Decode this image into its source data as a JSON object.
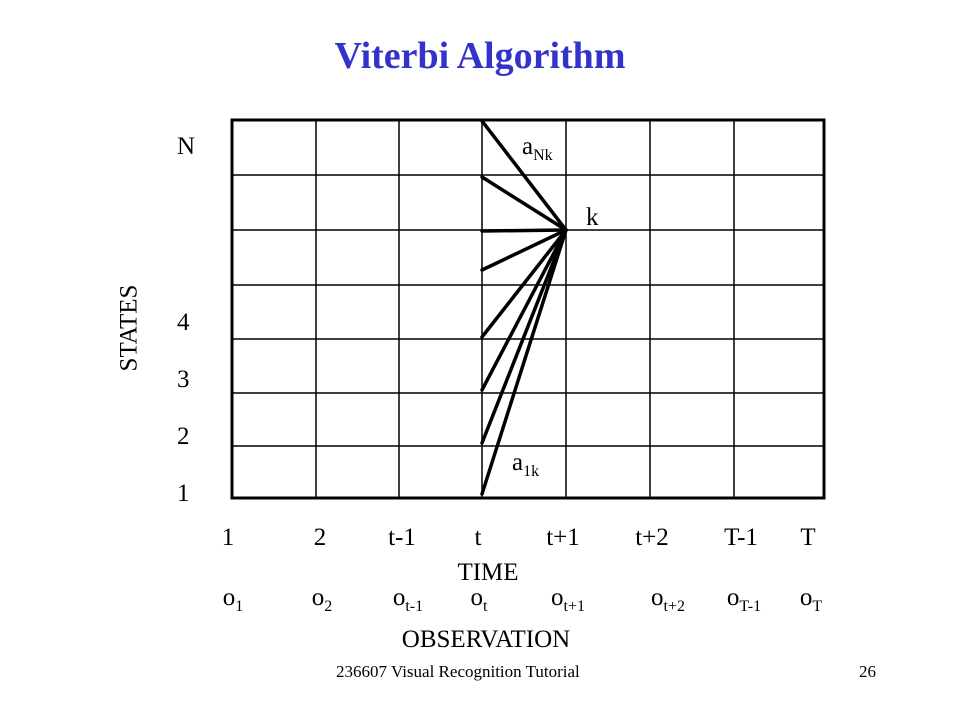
{
  "title": "Viterbi Algorithm",
  "states_label": "STATES",
  "state_ticks": [
    "N",
    "4",
    "3",
    "2",
    "1"
  ],
  "time_label": "TIME",
  "time_ticks": [
    "1",
    "2",
    "t-1",
    "t",
    "t+1",
    "t+2",
    "T-1",
    "T"
  ],
  "observation_label": "OBSERVATION",
  "observations": [
    {
      "base": "o",
      "sub": "1"
    },
    {
      "base": "o",
      "sub": "2"
    },
    {
      "base": "o",
      "sub": "t-1"
    },
    {
      "base": "o",
      "sub": "t"
    },
    {
      "base": "o",
      "sub": "t+1"
    },
    {
      "base": "o",
      "sub": "t+2"
    },
    {
      "base": "o",
      "sub": "T-1"
    },
    {
      "base": "o",
      "sub": "T"
    }
  ],
  "labels": {
    "top_transition": {
      "base": "a",
      "sub": "Nk"
    },
    "target_state": "k",
    "bottom_transition": {
      "base": "a",
      "sub": "1k"
    }
  },
  "footer": {
    "left": "236607 Visual Recognition Tutorial",
    "page": "26"
  },
  "colors": {
    "title": "#3333cc",
    "lines": "#000000"
  }
}
